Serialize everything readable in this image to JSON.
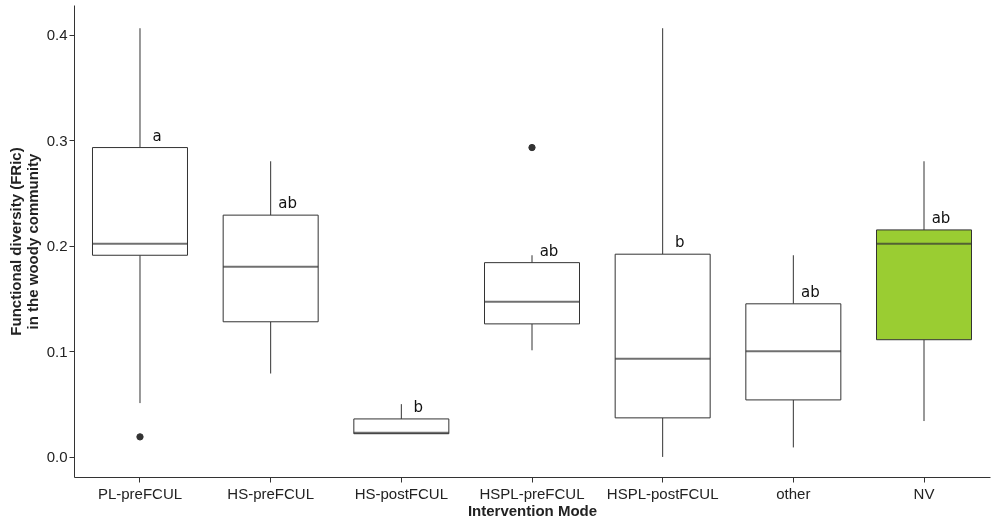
{
  "chart_data": {
    "type": "box",
    "xlabel": "Intervention Mode",
    "ylabel": "Functional diversity (FRic)\nin the woody community",
    "categories": [
      "PL-preFCUL",
      "HS-preFCUL",
      "HS-postFCUL",
      "HSPL-preFCUL",
      "HSPL-postFCUL",
      "other",
      "NV"
    ],
    "boxes": [
      {
        "low": 0.051,
        "q1": 0.191,
        "median": 0.202,
        "q3": 0.293,
        "high": 0.406,
        "outliers": [
          0.019
        ]
      },
      {
        "low": 0.079,
        "q1": 0.128,
        "median": 0.18,
        "q3": 0.229,
        "high": 0.28
      },
      {
        "low": 0.022,
        "q1": 0.022,
        "median": 0.023,
        "q3": 0.036,
        "high": 0.05
      },
      {
        "low": 0.101,
        "q1": 0.126,
        "median": 0.147,
        "q3": 0.184,
        "high": 0.191,
        "outliers": [
          0.293
        ]
      },
      {
        "low": 0.0,
        "q1": 0.037,
        "median": 0.093,
        "q3": 0.192,
        "high": 0.406
      },
      {
        "low": 0.009,
        "q1": 0.054,
        "median": 0.1,
        "q3": 0.145,
        "high": 0.191
      },
      {
        "low": 0.034,
        "q1": 0.111,
        "median": 0.202,
        "q3": 0.215,
        "high": 0.28
      }
    ],
    "colors": [
      "#ffffff",
      "#ffffff",
      "#ffffff",
      "#ffffff",
      "#ffffff",
      "#ffffff",
      "#9acd32"
    ],
    "ylim": [
      -0.019,
      0.428
    ],
    "yticks": [
      {
        "value": 0,
        "label": "0.0"
      },
      0.1,
      0.2,
      0.3,
      0.4
    ],
    "grid": false,
    "annotations": [
      "a",
      "ab",
      "b",
      "ab",
      "b",
      "ab",
      "ab"
    ]
  }
}
